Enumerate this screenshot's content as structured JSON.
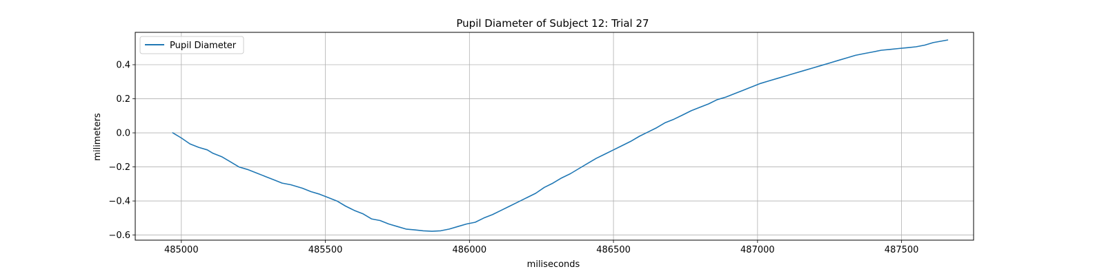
{
  "chart_data": {
    "type": "line",
    "title": "Pupil Diameter of Subject 12: Trial 27",
    "xlabel": "miliseconds",
    "ylabel": "milimeters",
    "xlim": [
      484840,
      487750
    ],
    "ylim": [
      -0.63,
      0.59
    ],
    "xticks": [
      485000,
      485500,
      486000,
      486500,
      487000,
      487500
    ],
    "xtick_labels": [
      "485000",
      "485500",
      "486000",
      "486500",
      "487000",
      "487500"
    ],
    "yticks": [
      -0.6,
      -0.4,
      -0.2,
      0.0,
      0.2,
      0.4
    ],
    "ytick_labels": [
      "−0.6",
      "−0.4",
      "−0.2",
      "0.0",
      "0.2",
      "0.4"
    ],
    "grid": true,
    "legend_position": "upper-left",
    "series": [
      {
        "name": "Pupil Diameter",
        "color": "#1f77b4",
        "points": [
          [
            484970,
            0.0
          ],
          [
            485000,
            -0.03
          ],
          [
            485030,
            -0.065
          ],
          [
            485060,
            -0.085
          ],
          [
            485090,
            -0.1
          ],
          [
            485110,
            -0.12
          ],
          [
            485140,
            -0.14
          ],
          [
            485170,
            -0.17
          ],
          [
            485200,
            -0.2
          ],
          [
            485230,
            -0.215
          ],
          [
            485260,
            -0.235
          ],
          [
            485290,
            -0.255
          ],
          [
            485320,
            -0.275
          ],
          [
            485350,
            -0.295
          ],
          [
            485380,
            -0.305
          ],
          [
            485420,
            -0.325
          ],
          [
            485450,
            -0.345
          ],
          [
            485480,
            -0.36
          ],
          [
            485510,
            -0.38
          ],
          [
            485540,
            -0.4
          ],
          [
            485570,
            -0.43
          ],
          [
            485600,
            -0.455
          ],
          [
            485630,
            -0.475
          ],
          [
            485660,
            -0.505
          ],
          [
            485690,
            -0.515
          ],
          [
            485720,
            -0.535
          ],
          [
            485750,
            -0.55
          ],
          [
            485780,
            -0.565
          ],
          [
            485810,
            -0.57
          ],
          [
            485840,
            -0.575
          ],
          [
            485870,
            -0.578
          ],
          [
            485900,
            -0.575
          ],
          [
            485930,
            -0.565
          ],
          [
            485960,
            -0.55
          ],
          [
            485990,
            -0.535
          ],
          [
            486020,
            -0.525
          ],
          [
            486050,
            -0.5
          ],
          [
            486080,
            -0.48
          ],
          [
            486110,
            -0.455
          ],
          [
            486140,
            -0.43
          ],
          [
            486170,
            -0.405
          ],
          [
            486200,
            -0.38
          ],
          [
            486230,
            -0.355
          ],
          [
            486260,
            -0.32
          ],
          [
            486290,
            -0.295
          ],
          [
            486320,
            -0.265
          ],
          [
            486350,
            -0.24
          ],
          [
            486380,
            -0.21
          ],
          [
            486410,
            -0.18
          ],
          [
            486440,
            -0.15
          ],
          [
            486470,
            -0.125
          ],
          [
            486500,
            -0.1
          ],
          [
            486530,
            -0.075
          ],
          [
            486560,
            -0.05
          ],
          [
            486590,
            -0.02
          ],
          [
            486620,
            0.005
          ],
          [
            486650,
            0.03
          ],
          [
            486680,
            0.06
          ],
          [
            486710,
            0.08
          ],
          [
            486740,
            0.105
          ],
          [
            486770,
            0.13
          ],
          [
            486800,
            0.15
          ],
          [
            486830,
            0.17
          ],
          [
            486860,
            0.195
          ],
          [
            486890,
            0.21
          ],
          [
            486920,
            0.23
          ],
          [
            486950,
            0.25
          ],
          [
            486980,
            0.27
          ],
          [
            487010,
            0.29
          ],
          [
            487040,
            0.305
          ],
          [
            487070,
            0.32
          ],
          [
            487100,
            0.335
          ],
          [
            487130,
            0.35
          ],
          [
            487160,
            0.365
          ],
          [
            487190,
            0.38
          ],
          [
            487220,
            0.395
          ],
          [
            487250,
            0.41
          ],
          [
            487280,
            0.425
          ],
          [
            487310,
            0.44
          ],
          [
            487340,
            0.455
          ],
          [
            487370,
            0.465
          ],
          [
            487400,
            0.475
          ],
          [
            487430,
            0.485
          ],
          [
            487460,
            0.49
          ],
          [
            487490,
            0.495
          ],
          [
            487520,
            0.5
          ],
          [
            487550,
            0.505
          ],
          [
            487580,
            0.515
          ],
          [
            487610,
            0.53
          ],
          [
            487660,
            0.545
          ]
        ]
      }
    ]
  }
}
